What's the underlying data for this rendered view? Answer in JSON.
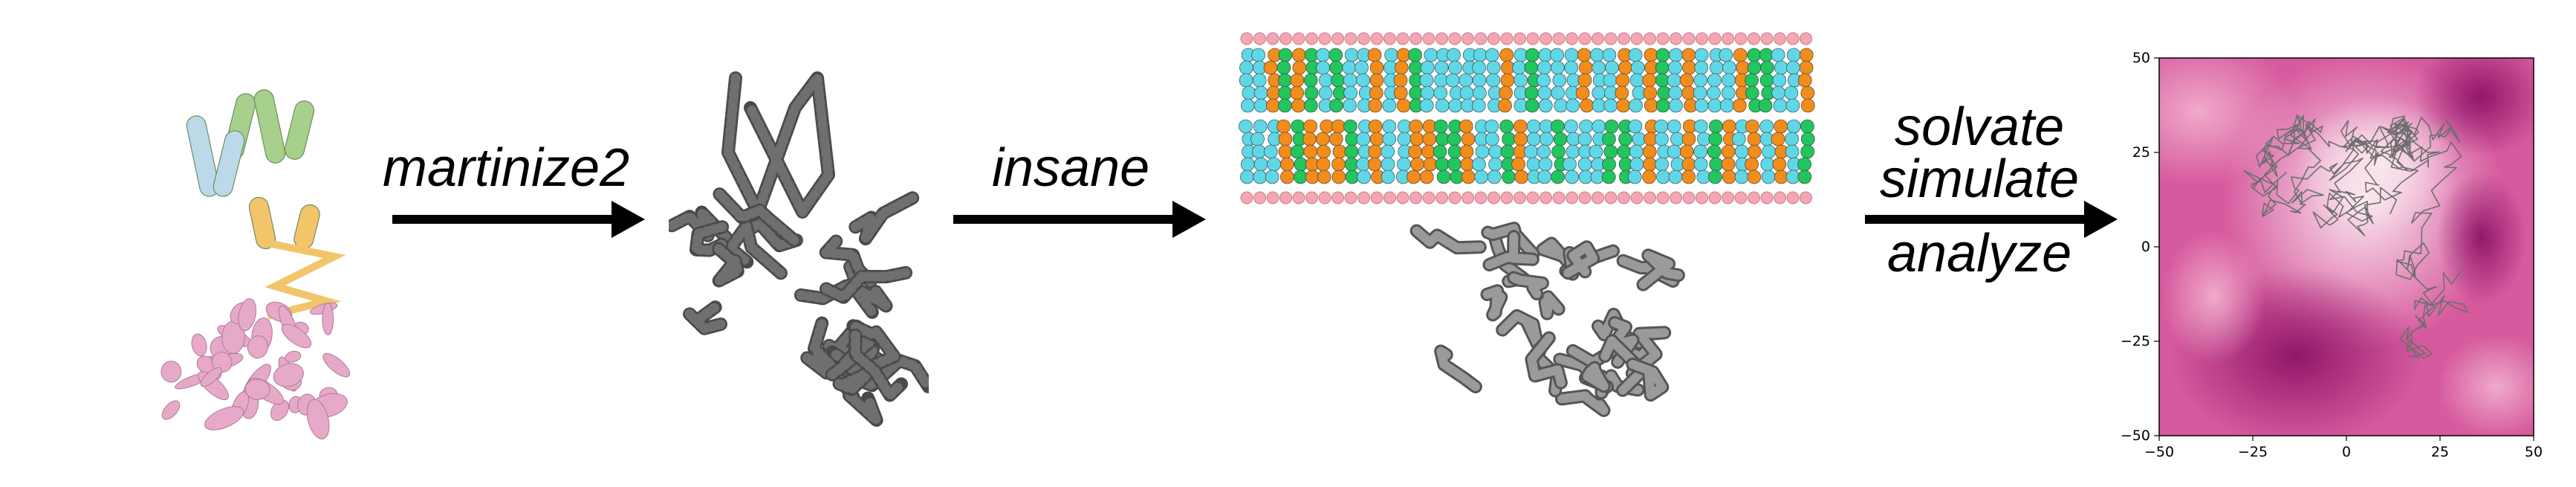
{
  "steps": [
    {
      "label": "martinize2"
    },
    {
      "label": "insane"
    },
    {
      "label_lines": [
        "solvate",
        "simulate",
        "analyze"
      ]
    }
  ],
  "panels": {
    "atomistic": {
      "colors": [
        "#a8d08d",
        "#bcd9ea",
        "#f2c56b",
        "#e6a9c7"
      ]
    },
    "coarse_grained": {
      "color": "#6f6f6f"
    },
    "membrane": {
      "lipid_colors": [
        "#22c55e",
        "#f28c1a",
        "#5fd7e6",
        "#f4a6b5",
        "#8a8a8a"
      ]
    }
  },
  "chart_data": {
    "type": "heatmap",
    "xlim": [
      -50,
      50
    ],
    "ylim": [
      -50,
      50
    ],
    "xticks": [
      "−50",
      "−25",
      "0",
      "25",
      "50"
    ],
    "yticks": [
      "50",
      "25",
      "0",
      "−25",
      "−50"
    ],
    "colormap": [
      "#fbe7ef",
      "#e889b4",
      "#c9398c",
      "#8e1367"
    ],
    "overlay": "protein backbone trace (grey)"
  }
}
